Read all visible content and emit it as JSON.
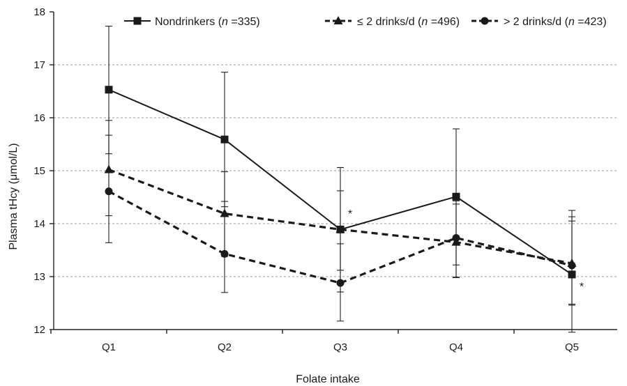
{
  "chart_data": {
    "type": "line",
    "xlabel": "Folate intake",
    "ylabel": "Plasma tHcy (μmol/L)",
    "categories": [
      "Q1",
      "Q2",
      "Q3",
      "Q4",
      "Q5"
    ],
    "ylim": [
      12,
      18
    ],
    "yticks": [
      "12",
      "13",
      "14",
      "15",
      "16",
      "17",
      "18"
    ],
    "grid": "horizontal dashed",
    "legend_position": "top",
    "series": [
      {
        "name": "Nondrinkers (n = 335)",
        "legend_prefix": "Nondrinkers (",
        "legend_n": "n",
        "legend_suffix": " =335)",
        "marker": "square",
        "line_style": "solid",
        "values": [
          16.53,
          15.59,
          13.89,
          14.51,
          13.04
        ],
        "error_upper": [
          17.73,
          16.86,
          15.06,
          15.79,
          14.25
        ],
        "error_lower": [
          15.32,
          14.32,
          12.71,
          13.22,
          11.95
        ]
      },
      {
        "name": "≤ 2 drinks/d (n = 496)",
        "legend_prefix": "≤ 2 drinks/d (",
        "legend_n": "n",
        "legend_suffix": " =496)",
        "marker": "triangle",
        "line_style": "dashed",
        "values": [
          15.02,
          14.19,
          13.89,
          13.65,
          13.25
        ],
        "error_upper": [
          15.95,
          14.98,
          14.62,
          14.37,
          14.13
        ],
        "error_lower": [
          14.15,
          13.38,
          13.12,
          12.98,
          12.46
        ]
      },
      {
        "name": "> 2 drinks/d (n = 423)",
        "legend_prefix": "> 2 drinks/d (",
        "legend_n": "n",
        "legend_suffix": " =423)",
        "marker": "circle",
        "line_style": "dashed",
        "values": [
          14.61,
          13.43,
          12.88,
          13.73,
          13.21
        ],
        "error_upper": [
          15.67,
          14.42,
          13.62,
          14.43,
          14.05
        ],
        "error_lower": [
          13.64,
          12.7,
          12.16,
          12.99,
          12.48
        ]
      }
    ],
    "annotations": [
      {
        "text": "*",
        "category": "Q3",
        "y": 14.2
      },
      {
        "text": "*",
        "category": "Q5",
        "y": 12.82
      }
    ]
  }
}
